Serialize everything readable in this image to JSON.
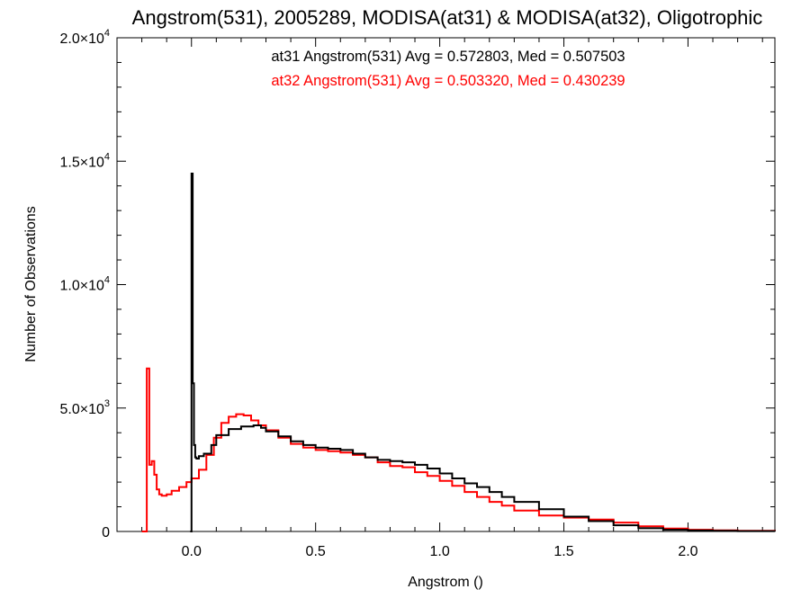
{
  "chart_data": {
    "type": "line",
    "step": true,
    "title": "Angstrom(531), 2005289, MODISA(at31) & MODISA(at32), Oligotrophic",
    "xlabel": "Angstrom ()",
    "ylabel": "Number of Observations",
    "xlim": [
      -0.3,
      2.35
    ],
    "ylim": [
      0,
      20000
    ],
    "grid": false,
    "x_ticks": [
      {
        "value": 0.0,
        "label": "0.0"
      },
      {
        "value": 0.5,
        "label": "0.5"
      },
      {
        "value": 1.0,
        "label": "1.0"
      },
      {
        "value": 1.5,
        "label": "1.5"
      },
      {
        "value": 2.0,
        "label": "2.0"
      }
    ],
    "y_ticks": [
      {
        "value": 0,
        "label": "0",
        "exp": ""
      },
      {
        "value": 5000,
        "label": "5.0×10",
        "exp": "3"
      },
      {
        "value": 10000,
        "label": "1.0×10",
        "exp": "4"
      },
      {
        "value": 15000,
        "label": "1.5×10",
        "exp": "4"
      },
      {
        "value": 20000,
        "label": "2.0×10",
        "exp": "4"
      }
    ],
    "annotations": [
      {
        "text": "at31 Angstrom(531) Avg = 0.572803, Med = 0.507503",
        "color": "#000000"
      },
      {
        "text": "at32 Angstrom(531) Avg = 0.503320, Med = 0.430239",
        "color": "#ff0000"
      }
    ],
    "series": [
      {
        "id": "at31",
        "color": "#000000",
        "x": [
          -0.005,
          0.0,
          0.005,
          0.01,
          0.015,
          0.02,
          0.03,
          0.05,
          0.08,
          0.1,
          0.15,
          0.2,
          0.25,
          0.28,
          0.3,
          0.35,
          0.4,
          0.45,
          0.5,
          0.55,
          0.6,
          0.65,
          0.7,
          0.75,
          0.8,
          0.85,
          0.9,
          0.95,
          1.0,
          1.05,
          1.1,
          1.15,
          1.2,
          1.25,
          1.3,
          1.4,
          1.5,
          1.6,
          1.7,
          1.8,
          1.9,
          2.0,
          2.1,
          2.2,
          2.35
        ],
        "y": [
          0,
          14500,
          6000,
          3500,
          3000,
          2950,
          3050,
          3150,
          3500,
          3900,
          4150,
          4250,
          4300,
          4200,
          4050,
          3850,
          3650,
          3500,
          3400,
          3350,
          3300,
          3150,
          3000,
          2900,
          2850,
          2800,
          2700,
          2550,
          2350,
          2150,
          1950,
          1800,
          1600,
          1400,
          1200,
          900,
          600,
          420,
          250,
          130,
          70,
          40,
          25,
          15,
          8
        ]
      },
      {
        "id": "at32",
        "color": "#ff0000",
        "x": [
          -0.2,
          -0.18,
          -0.17,
          -0.16,
          -0.15,
          -0.14,
          -0.13,
          -0.12,
          -0.1,
          -0.08,
          -0.05,
          -0.02,
          0.0,
          0.03,
          0.06,
          0.09,
          0.12,
          0.15,
          0.18,
          0.21,
          0.24,
          0.27,
          0.3,
          0.35,
          0.4,
          0.45,
          0.5,
          0.55,
          0.6,
          0.65,
          0.7,
          0.75,
          0.8,
          0.85,
          0.9,
          0.95,
          1.0,
          1.05,
          1.1,
          1.15,
          1.2,
          1.25,
          1.3,
          1.4,
          1.5,
          1.6,
          1.7,
          1.8,
          1.9,
          2.0,
          2.1,
          2.2,
          2.35
        ],
        "y": [
          0,
          6600,
          2700,
          2850,
          2300,
          1700,
          1500,
          1450,
          1500,
          1650,
          1800,
          2000,
          2150,
          2500,
          3100,
          3800,
          4400,
          4650,
          4750,
          4700,
          4500,
          4300,
          4100,
          3800,
          3550,
          3400,
          3300,
          3250,
          3200,
          3100,
          3000,
          2800,
          2650,
          2600,
          2400,
          2250,
          2050,
          1850,
          1600,
          1400,
          1200,
          1050,
          850,
          650,
          560,
          480,
          360,
          210,
          120,
          70,
          45,
          30,
          15
        ]
      }
    ]
  }
}
